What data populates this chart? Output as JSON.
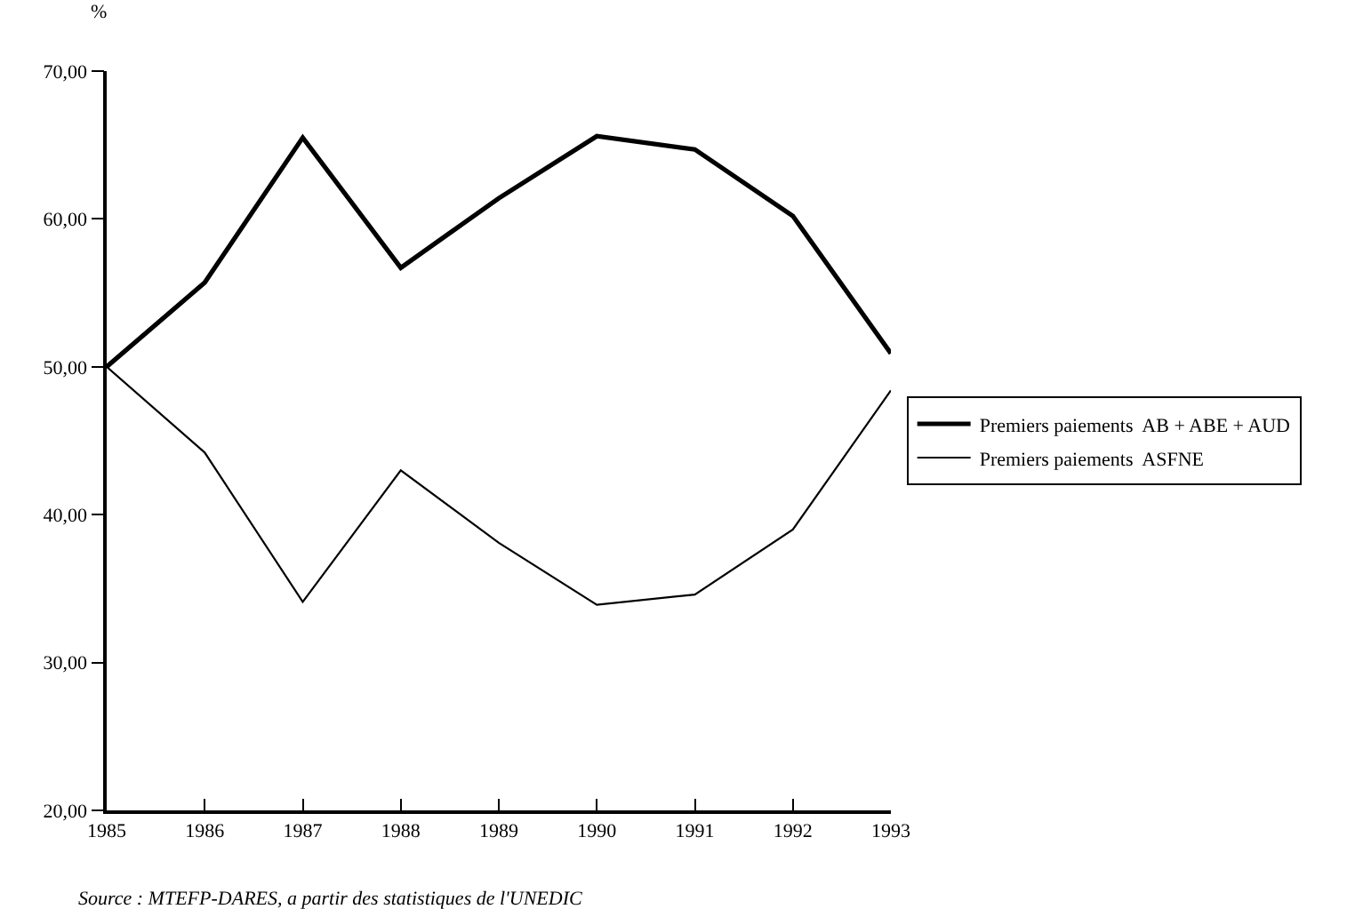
{
  "chart_data": {
    "type": "line",
    "ylabel": "%",
    "x": [
      1985,
      1986,
      1987,
      1988,
      1989,
      1990,
      1991,
      1992,
      1993
    ],
    "xlim": [
      1985,
      1993
    ],
    "xticks": [
      1985,
      1986,
      1987,
      1988,
      1989,
      1990,
      1991,
      1992,
      1993
    ],
    "ylim": [
      20,
      70
    ],
    "yticks": [
      {
        "value": 20,
        "label": "20,00"
      },
      {
        "value": 30,
        "label": "30,00"
      },
      {
        "value": 40,
        "label": "40,00"
      },
      {
        "value": 50,
        "label": "50,00"
      },
      {
        "value": 60,
        "label": "60,00"
      },
      {
        "value": 70,
        "label": "70,00"
      }
    ],
    "series": [
      {
        "name": "Premiers paiements  AB + ABE + AUD",
        "color": "#000000",
        "values": [
          50.0,
          55.7,
          65.5,
          56.7,
          61.4,
          65.6,
          64.7,
          60.2,
          50.9
        ]
      },
      {
        "name": "Premiers paiements  ASFNE",
        "color": "#000000",
        "values": [
          50.0,
          44.2,
          34.1,
          43.0,
          38.1,
          33.9,
          34.6,
          39.0,
          48.4
        ]
      }
    ],
    "annotations": [
      "Source : MTEFP-DARES, a partir des statistiques de l'UNEDIC"
    ],
    "legend": "right",
    "marker": "none",
    "line_style": "solid"
  }
}
